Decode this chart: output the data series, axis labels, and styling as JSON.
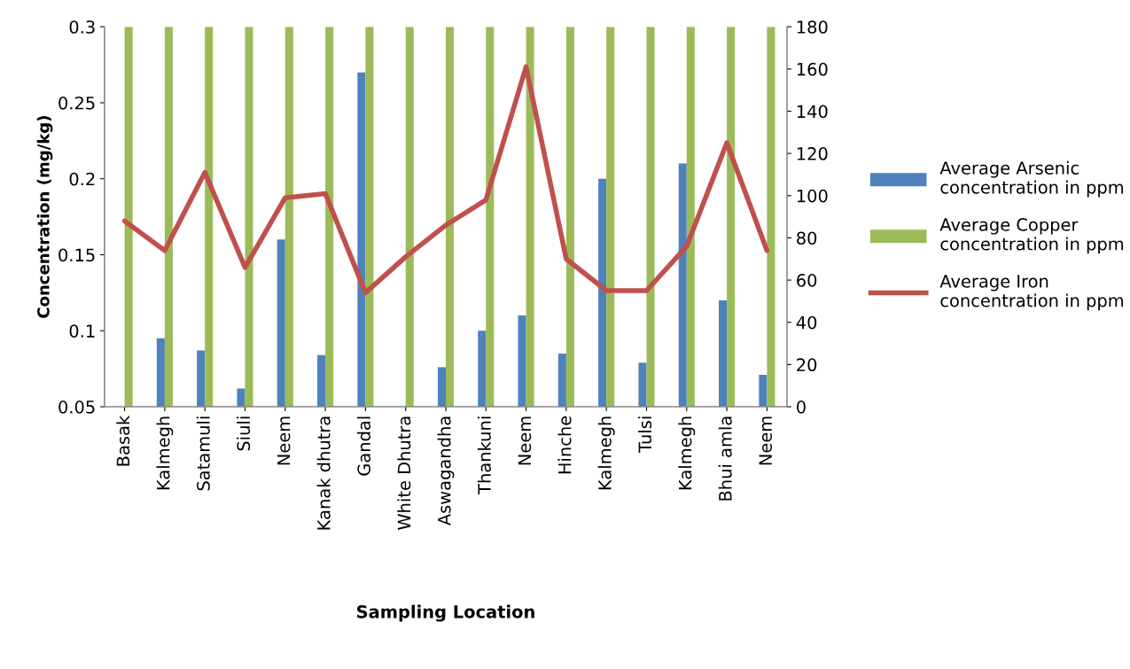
{
  "chart_data": {
    "type": "bar",
    "xlabel": "Sampling Location",
    "ylabel": "Concentration (mg/kg)",
    "categories": [
      "Basak",
      "Kalmegh",
      "Satamuli",
      "Siuli",
      "Neem",
      "Kanak dhutra",
      "Gandal",
      "White Dhutra",
      "Aswagandha",
      "Thankuni",
      "Neem",
      "Hinche",
      "Kalmegh",
      "Tulsi",
      "Kalmegh",
      "Bhui amla",
      "Neem"
    ],
    "series": [
      {
        "name": "Average Arsenic concentration in ppm",
        "color": "#4f81bd",
        "values": [
          null,
          0.095,
          0.087,
          0.062,
          0.16,
          0.084,
          0.27,
          null,
          0.076,
          0.1,
          0.11,
          0.085,
          0.2,
          0.079,
          0.21,
          0.12,
          0.071
        ]
      },
      {
        "name": "Average Copper concentration in ppm",
        "color": "#9bbb59",
        "values": [
          0.3,
          0.3,
          0.3,
          0.3,
          0.3,
          0.3,
          0.3,
          0.3,
          0.3,
          0.3,
          0.3,
          0.3,
          0.3,
          0.3,
          0.3,
          0.3,
          0.3
        ]
      },
      {
        "name": "Average Iron concentration in ppm",
        "color": "#c0504d",
        "type": "line",
        "axis": "y2",
        "values": [
          88,
          74,
          111,
          66,
          99,
          101,
          54,
          71,
          86,
          98,
          161,
          70,
          55,
          55,
          76,
          125,
          74
        ]
      }
    ],
    "ylim": [
      0.05,
      0.3
    ],
    "yticks": [
      0.05,
      0.1,
      0.15,
      0.2,
      0.25,
      0.3
    ],
    "y2lim": [
      0,
      180
    ],
    "y2ticks": [
      0,
      20,
      40,
      60,
      80,
      100,
      120,
      140,
      160,
      180
    ],
    "legend": "right",
    "grid": false
  }
}
